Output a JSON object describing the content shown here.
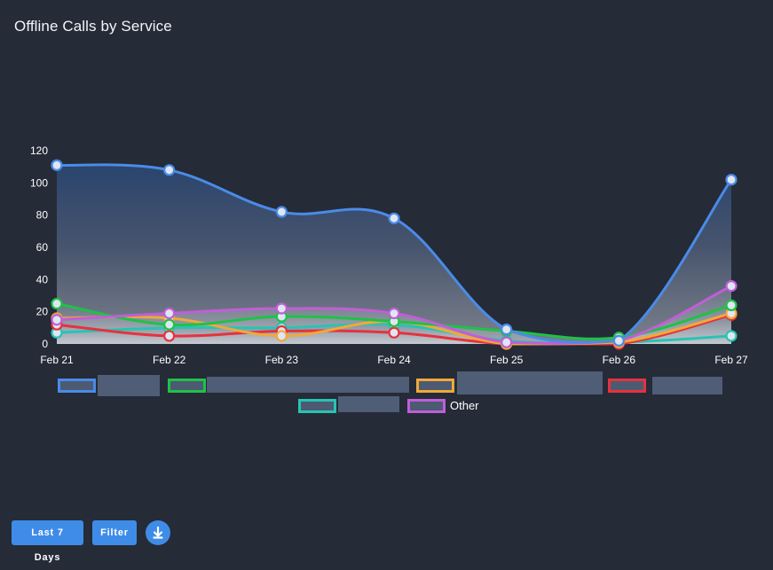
{
  "chart_data": {
    "type": "area",
    "title": "Offline Calls by Service",
    "categories": [
      "Feb 21",
      "Feb 22",
      "Feb 23",
      "Feb 24",
      "Feb 25",
      "Feb 26",
      "Feb 27"
    ],
    "ylim": [
      0,
      120
    ],
    "yticks": [
      0,
      20,
      40,
      60,
      80,
      100,
      120
    ],
    "grid": false,
    "legend_position": "bottom",
    "series": [
      {
        "name": "",
        "color": "#4a8be8",
        "values": [
          111,
          108,
          82,
          78,
          9,
          2,
          102
        ]
      },
      {
        "name": "Other",
        "color": "#c15ed8",
        "values": [
          15,
          19,
          22,
          19,
          1,
          2,
          36
        ]
      },
      {
        "name": "",
        "color": "#1fc247",
        "values": [
          25,
          12,
          17,
          14,
          8,
          4,
          24
        ]
      },
      {
        "name": "",
        "color": "#f0a93a",
        "values": [
          16,
          16,
          5,
          14,
          0,
          1,
          19
        ]
      },
      {
        "name": "",
        "color": "#e6323e",
        "values": [
          12,
          5,
          8,
          7,
          0,
          0,
          18
        ]
      },
      {
        "name": "",
        "color": "#27c4b3",
        "values": [
          7,
          10,
          10,
          12,
          2,
          1,
          5
        ]
      }
    ]
  },
  "buttons": {
    "range_label": "Last 7 Days",
    "filter_label": "Filter",
    "download_icon": "download-icon"
  }
}
